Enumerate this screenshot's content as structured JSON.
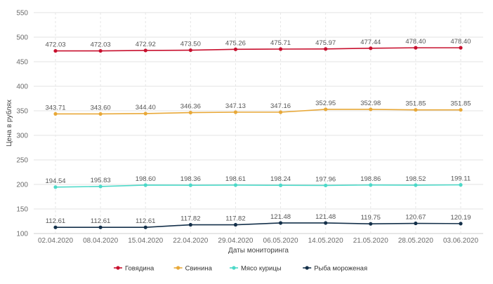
{
  "chart_data": {
    "type": "line",
    "title": "",
    "xlabel": "Даты мониторинга",
    "ylabel": "Цена в рублях",
    "ylim": [
      100,
      550
    ],
    "yticks": [
      100,
      150,
      200,
      250,
      300,
      350,
      400,
      450,
      500,
      550
    ],
    "grid": true,
    "legend_position": "bottom-center",
    "categories": [
      "02.04.2020",
      "08.04.2020",
      "15.04.2020",
      "22.04.2020",
      "29.04.2020",
      "06.05.2020",
      "14.05.2020",
      "21.05.2020",
      "28.05.2020",
      "03.06.2020"
    ],
    "series": [
      {
        "name": "Говядина",
        "color": "#c8102e",
        "values": [
          472.03,
          472.03,
          472.92,
          473.5,
          475.26,
          475.71,
          475.97,
          477.44,
          478.4,
          478.4
        ],
        "labels": [
          "472.03",
          "472.03",
          "472.92",
          "473.50",
          "475.26",
          "475.71",
          "475.97",
          "477.44",
          "478.40",
          "478.40"
        ]
      },
      {
        "name": "Свинина",
        "color": "#e8a838",
        "values": [
          343.71,
          343.6,
          344.4,
          346.36,
          347.13,
          347.16,
          352.95,
          352.98,
          351.85,
          351.85
        ],
        "labels": [
          "343.71",
          "343.60",
          "344.40",
          "346.36",
          "347.13",
          "347.16",
          "352.95",
          "352.98",
          "351.85",
          "351.85"
        ]
      },
      {
        "name": "Мясо курицы",
        "color": "#4dd9c8",
        "values": [
          194.54,
          195.83,
          198.6,
          198.36,
          198.61,
          198.24,
          197.96,
          198.86,
          198.52,
          199.11
        ],
        "labels": [
          "194.54",
          "195.83",
          "198.60",
          "198.36",
          "198.61",
          "198.24",
          "197.96",
          "198.86",
          "198.52",
          "199.11"
        ]
      },
      {
        "name": "Рыба мороженая",
        "color": "#14304a",
        "values": [
          112.61,
          112.61,
          112.61,
          117.82,
          117.82,
          121.48,
          121.48,
          119.75,
          120.67,
          120.19
        ],
        "labels": [
          "112.61",
          "112.61",
          "112.61",
          "117.82",
          "117.82",
          "121.48",
          "121.48",
          "119.75",
          "120.67",
          "120.19"
        ]
      }
    ]
  }
}
